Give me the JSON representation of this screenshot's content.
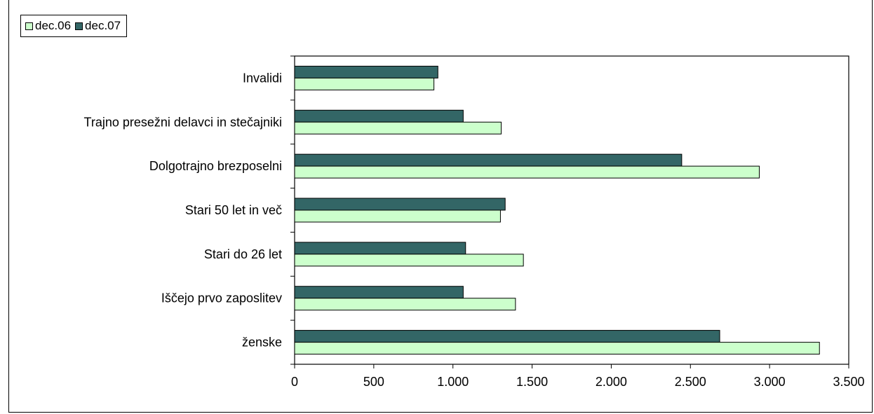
{
  "chart_data": {
    "type": "bar",
    "orientation": "horizontal",
    "categories": [
      "Invalidi",
      "Trajno presežni delavci in stečajniki",
      "Dolgotrajno brezposelni",
      "Stari 50 let in več",
      "Stari do 26 let",
      "Iščejo prvo zaposlitev",
      "ženske"
    ],
    "series": [
      {
        "name": "dec.06",
        "color": "#ccffcc",
        "values": [
          880,
          1305,
          2935,
          1300,
          1445,
          1395,
          3315
        ]
      },
      {
        "name": "dec.07",
        "color": "#336666",
        "values": [
          905,
          1065,
          2445,
          1330,
          1080,
          1065,
          2685
        ]
      }
    ],
    "xlim": [
      0,
      3500
    ],
    "xticks": [
      0,
      500,
      1000,
      1500,
      2000,
      2500,
      3000,
      3500
    ],
    "xtick_labels": [
      "0",
      "500",
      "1.000",
      "1.500",
      "2.000",
      "2.500",
      "3.000",
      "3.500"
    ],
    "title": "",
    "xlabel": "",
    "ylabel": "",
    "grid": false,
    "legend_position": "top-left"
  }
}
